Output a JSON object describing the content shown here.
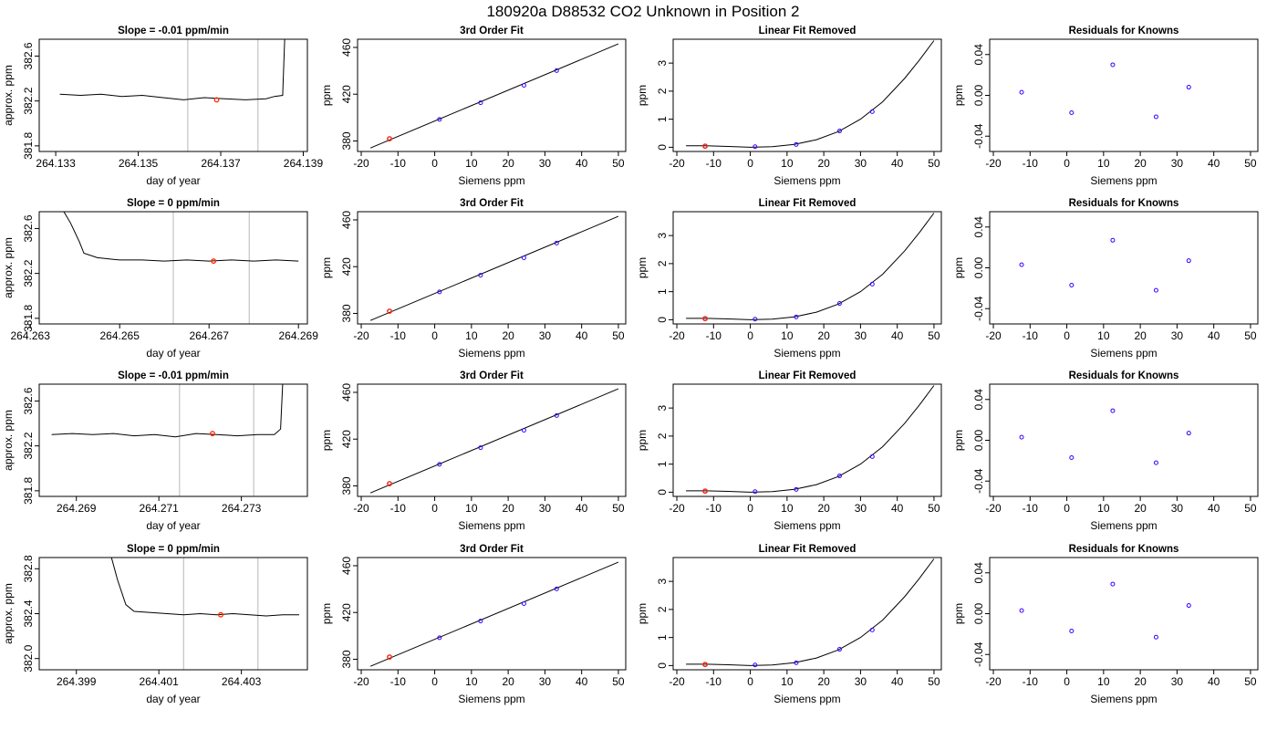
{
  "figure_title": "180920a      D88532    CO2 Unknown in Position  2",
  "chart_data": [
    {
      "type": "line",
      "title": "Slope =  -0.01  ppm/min",
      "xlabel": "day of year",
      "ylabel": "approx. ppm",
      "xlim": [
        264.1326,
        264.1391
      ],
      "ylim": [
        381.75,
        382.75
      ],
      "xticks": [
        "264.133",
        "264.135",
        "264.137",
        "264.139"
      ],
      "yticks": [
        "381.8",
        "382.2",
        "382.6"
      ],
      "vlines": [
        264.1362,
        264.1379
      ],
      "marker": {
        "x": 264.1369,
        "y": 382.21
      },
      "series": [
        {
          "x": [
            264.1331,
            264.1336,
            264.1341,
            264.1346,
            264.1351,
            264.1356,
            264.1361,
            264.1366,
            264.1371,
            264.1376,
            264.1381,
            264.1383,
            264.1385,
            264.13855
          ],
          "y": [
            382.26,
            382.25,
            382.26,
            382.24,
            382.25,
            382.23,
            382.21,
            382.23,
            382.22,
            382.21,
            382.22,
            382.24,
            382.25,
            382.75
          ]
        }
      ]
    },
    {
      "type": "scatter",
      "title": "3rd Order Fit",
      "xlabel": "Siemens ppm",
      "ylabel": "ppm",
      "xlim": [
        -21,
        52
      ],
      "ylim": [
        371,
        467
      ],
      "xticks": [
        "-20",
        "-10",
        "0",
        "10",
        "20",
        "30",
        "40",
        "50"
      ],
      "yticks": [
        "380",
        "420",
        "460"
      ],
      "points": {
        "x": [
          -12.3,
          1.3,
          12.5,
          24.3,
          33.2
        ],
        "y": [
          381.9,
          398.4,
          412.7,
          427.6,
          440.2
        ]
      },
      "fit": {
        "x": [
          -17.5,
          50
        ],
        "y": [
          374,
          463
        ]
      },
      "marker": {
        "x": -12.3,
        "y": 381.9
      }
    },
    {
      "type": "scatter",
      "title": "Linear Fit Removed",
      "xlabel": "Siemens ppm",
      "ylabel": "ppm",
      "xlim": [
        -21,
        52
      ],
      "ylim": [
        -0.15,
        3.85
      ],
      "xticks": [
        "-20",
        "-10",
        "0",
        "10",
        "20",
        "30",
        "40",
        "50"
      ],
      "yticks": [
        "0",
        "1",
        "2",
        "3"
      ],
      "points": {
        "x": [
          -12.3,
          1.3,
          12.5,
          24.3,
          33.2
        ],
        "y": [
          0.04,
          0.02,
          0.1,
          0.58,
          1.27
        ]
      },
      "fit": {
        "x": [
          -17.5,
          -12,
          -6,
          0,
          6,
          12,
          18,
          24,
          30,
          36,
          42,
          46,
          50
        ],
        "y": [
          0.05,
          0.05,
          0.03,
          0.0,
          0.02,
          0.1,
          0.27,
          0.56,
          1.0,
          1.62,
          2.45,
          3.1,
          3.8
        ]
      },
      "marker": {
        "x": -12.3,
        "y": 0.04
      }
    },
    {
      "type": "scatter",
      "title": "Residuals for Knowns",
      "xlabel": "Siemens ppm",
      "ylabel": "ppm",
      "xlim": [
        -21,
        52
      ],
      "ylim": [
        -0.055,
        0.055
      ],
      "xticks": [
        "-20",
        "-10",
        "0",
        "10",
        "20",
        "30",
        "40",
        "50"
      ],
      "yticks": [
        "-0.04",
        "0.00",
        "0.04"
      ],
      "points": {
        "x": [
          -12.3,
          1.3,
          12.5,
          24.3,
          33.2
        ],
        "y": [
          0.003,
          -0.017,
          0.03,
          -0.021,
          0.008
        ]
      }
    },
    {
      "type": "line",
      "title": "Slope =  0  ppm/min",
      "xlabel": "day of year",
      "ylabel": "approx. ppm",
      "xlim": [
        264.2632,
        264.2692
      ],
      "ylim": [
        381.75,
        382.75
      ],
      "xticks": [
        "264.263",
        "264.265",
        "264.267",
        "264.269"
      ],
      "yticks": [
        "381.8",
        "382.2",
        "382.6"
      ],
      "vlines": [
        264.2662,
        264.2679
      ],
      "marker": {
        "x": 264.2671,
        "y": 382.31
      },
      "series": [
        {
          "x": [
            264.26375,
            264.2639,
            264.2641,
            264.2642,
            264.2645,
            264.265,
            264.2655,
            264.266,
            264.2665,
            264.267,
            264.2675,
            264.268,
            264.2685,
            264.269
          ],
          "y": [
            382.75,
            382.65,
            382.48,
            382.38,
            382.34,
            382.32,
            382.32,
            382.31,
            382.32,
            382.31,
            382.32,
            382.31,
            382.32,
            382.31
          ]
        }
      ]
    },
    {
      "type": "scatter",
      "title": "3rd Order Fit",
      "xlabel": "Siemens ppm",
      "ylabel": "ppm",
      "xlim": [
        -21,
        52
      ],
      "ylim": [
        371,
        467
      ],
      "xticks": [
        "-20",
        "-10",
        "0",
        "10",
        "20",
        "30",
        "40",
        "50"
      ],
      "yticks": [
        "380",
        "420",
        "460"
      ],
      "points": {
        "x": [
          -12.3,
          1.3,
          12.5,
          24.3,
          33.2
        ],
        "y": [
          381.9,
          398.4,
          412.7,
          427.6,
          440.2
        ]
      },
      "fit": {
        "x": [
          -17.5,
          50
        ],
        "y": [
          374,
          463
        ]
      },
      "marker": {
        "x": -12.3,
        "y": 381.9
      }
    },
    {
      "type": "scatter",
      "title": "Linear Fit Removed",
      "xlabel": "Siemens ppm",
      "ylabel": "ppm",
      "xlim": [
        -21,
        52
      ],
      "ylim": [
        -0.15,
        3.85
      ],
      "xticks": [
        "-20",
        "-10",
        "0",
        "10",
        "20",
        "30",
        "40",
        "50"
      ],
      "yticks": [
        "0",
        "1",
        "2",
        "3"
      ],
      "points": {
        "x": [
          -12.3,
          1.3,
          12.5,
          24.3,
          33.2
        ],
        "y": [
          0.04,
          0.02,
          0.1,
          0.58,
          1.27
        ]
      },
      "fit": {
        "x": [
          -17.5,
          -12,
          -6,
          0,
          6,
          12,
          18,
          24,
          30,
          36,
          42,
          46,
          50
        ],
        "y": [
          0.05,
          0.05,
          0.03,
          0.0,
          0.02,
          0.1,
          0.27,
          0.56,
          1.0,
          1.62,
          2.45,
          3.1,
          3.8
        ]
      },
      "marker": {
        "x": -12.3,
        "y": 0.04
      }
    },
    {
      "type": "scatter",
      "title": "Residuals for Knowns",
      "xlabel": "Siemens ppm",
      "ylabel": "ppm",
      "xlim": [
        -21,
        52
      ],
      "ylim": [
        -0.055,
        0.055
      ],
      "xticks": [
        "-20",
        "-10",
        "0",
        "10",
        "20",
        "30",
        "40",
        "50"
      ],
      "yticks": [
        "-0.04",
        "0.00",
        "0.04"
      ],
      "points": {
        "x": [
          -12.3,
          1.3,
          12.5,
          24.3,
          33.2
        ],
        "y": [
          0.003,
          -0.017,
          0.027,
          -0.022,
          0.007
        ]
      }
    },
    {
      "type": "line",
      "title": "Slope =  -0.01  ppm/min",
      "xlabel": "day of year",
      "ylabel": "approx. ppm",
      "xlim": [
        264.2681,
        264.2746
      ],
      "ylim": [
        381.75,
        382.75
      ],
      "xticks": [
        "264.269",
        "264.271",
        "264.273"
      ],
      "yticks": [
        "381.8",
        "382.2",
        "382.6"
      ],
      "vlines": [
        264.2715,
        264.2733
      ],
      "marker": {
        "x": 264.2723,
        "y": 382.31
      },
      "series": [
        {
          "x": [
            264.2684,
            264.2689,
            264.2694,
            264.2699,
            264.2704,
            264.2709,
            264.2714,
            264.2719,
            264.2724,
            264.2729,
            264.2734,
            264.2738,
            264.27395,
            264.274
          ],
          "y": [
            382.3,
            382.31,
            382.3,
            382.31,
            382.29,
            382.3,
            382.28,
            382.31,
            382.3,
            382.29,
            382.3,
            382.3,
            382.35,
            382.75
          ]
        }
      ]
    },
    {
      "type": "scatter",
      "title": "3rd Order Fit",
      "xlabel": "Siemens ppm",
      "ylabel": "ppm",
      "xlim": [
        -21,
        52
      ],
      "ylim": [
        371,
        467
      ],
      "xticks": [
        "-20",
        "-10",
        "0",
        "10",
        "20",
        "30",
        "40",
        "50"
      ],
      "yticks": [
        "380",
        "420",
        "460"
      ],
      "points": {
        "x": [
          -12.3,
          1.3,
          12.5,
          24.3,
          33.2
        ],
        "y": [
          381.9,
          398.4,
          412.7,
          427.6,
          440.2
        ]
      },
      "fit": {
        "x": [
          -17.5,
          50
        ],
        "y": [
          374,
          463
        ]
      },
      "marker": {
        "x": -12.3,
        "y": 381.9
      }
    },
    {
      "type": "scatter",
      "title": "Linear Fit Removed",
      "xlabel": "Siemens ppm",
      "ylabel": "ppm",
      "xlim": [
        -21,
        52
      ],
      "ylim": [
        -0.15,
        3.85
      ],
      "xticks": [
        "-20",
        "-10",
        "0",
        "10",
        "20",
        "30",
        "40",
        "50"
      ],
      "yticks": [
        "0",
        "1",
        "2",
        "3"
      ],
      "points": {
        "x": [
          -12.3,
          1.3,
          12.5,
          24.3,
          33.2
        ],
        "y": [
          0.04,
          0.02,
          0.1,
          0.58,
          1.27
        ]
      },
      "fit": {
        "x": [
          -17.5,
          -12,
          -6,
          0,
          6,
          12,
          18,
          24,
          30,
          36,
          42,
          46,
          50
        ],
        "y": [
          0.05,
          0.05,
          0.03,
          0.0,
          0.02,
          0.1,
          0.27,
          0.56,
          1.0,
          1.62,
          2.45,
          3.1,
          3.8
        ]
      },
      "marker": {
        "x": -12.3,
        "y": 0.04
      }
    },
    {
      "type": "scatter",
      "title": "Residuals for Knowns",
      "xlabel": "Siemens ppm",
      "ylabel": "ppm",
      "xlim": [
        -21,
        52
      ],
      "ylim": [
        -0.055,
        0.055
      ],
      "xticks": [
        "-20",
        "-10",
        "0",
        "10",
        "20",
        "30",
        "40",
        "50"
      ],
      "yticks": [
        "-0.04",
        "0.00",
        "0.04"
      ],
      "points": {
        "x": [
          -12.3,
          1.3,
          12.5,
          24.3,
          33.2
        ],
        "y": [
          0.003,
          -0.017,
          0.029,
          -0.022,
          0.007
        ]
      }
    },
    {
      "type": "line",
      "title": "Slope =  0  ppm/min",
      "xlabel": "day of year",
      "ylabel": "approx. ppm",
      "xlim": [
        264.3981,
        264.4046
      ],
      "ylim": [
        381.9,
        382.9
      ],
      "xticks": [
        "264.399",
        "264.401",
        "264.403"
      ],
      "yticks": [
        "382.0",
        "382.4",
        "382.8"
      ],
      "vlines": [
        264.4016,
        264.4034
      ],
      "marker": {
        "x": 264.4025,
        "y": 382.39
      },
      "series": [
        {
          "x": [
            264.39985,
            264.4,
            264.4002,
            264.4004,
            264.4008,
            264.4012,
            264.4016,
            264.402,
            264.4024,
            264.4028,
            264.4032,
            264.4036,
            264.404,
            264.4044
          ],
          "y": [
            382.9,
            382.7,
            382.48,
            382.42,
            382.41,
            382.4,
            382.39,
            382.4,
            382.39,
            382.4,
            382.39,
            382.38,
            382.39,
            382.39
          ]
        }
      ]
    },
    {
      "type": "scatter",
      "title": "3rd Order Fit",
      "xlabel": "Siemens ppm",
      "ylabel": "ppm",
      "xlim": [
        -21,
        52
      ],
      "ylim": [
        371,
        467
      ],
      "xticks": [
        "-20",
        "-10",
        "0",
        "10",
        "20",
        "30",
        "40",
        "50"
      ],
      "yticks": [
        "380",
        "420",
        "460"
      ],
      "points": {
        "x": [
          -12.3,
          1.3,
          12.5,
          24.3,
          33.2
        ],
        "y": [
          381.9,
          398.4,
          412.7,
          427.6,
          440.2
        ]
      },
      "fit": {
        "x": [
          -17.5,
          50
        ],
        "y": [
          374,
          463
        ]
      },
      "marker": {
        "x": -12.3,
        "y": 381.9
      }
    },
    {
      "type": "scatter",
      "title": "Linear Fit Removed",
      "xlabel": "Siemens ppm",
      "ylabel": "ppm",
      "xlim": [
        -21,
        52
      ],
      "ylim": [
        -0.15,
        3.85
      ],
      "xticks": [
        "-20",
        "-10",
        "0",
        "10",
        "20",
        "30",
        "40",
        "50"
      ],
      "yticks": [
        "0",
        "1",
        "2",
        "3"
      ],
      "points": {
        "x": [
          -12.3,
          1.3,
          12.5,
          24.3,
          33.2
        ],
        "y": [
          0.04,
          0.02,
          0.1,
          0.58,
          1.27
        ]
      },
      "fit": {
        "x": [
          -17.5,
          -12,
          -6,
          0,
          6,
          12,
          18,
          24,
          30,
          36,
          42,
          46,
          50
        ],
        "y": [
          0.05,
          0.05,
          0.03,
          0.0,
          0.02,
          0.1,
          0.27,
          0.56,
          1.0,
          1.62,
          2.45,
          3.1,
          3.8
        ]
      },
      "marker": {
        "x": -12.3,
        "y": 0.04
      }
    },
    {
      "type": "scatter",
      "title": "Residuals for Knowns",
      "xlabel": "Siemens ppm",
      "ylabel": "ppm",
      "xlim": [
        -21,
        52
      ],
      "ylim": [
        -0.055,
        0.055
      ],
      "xticks": [
        "-20",
        "-10",
        "0",
        "10",
        "20",
        "30",
        "40",
        "50"
      ],
      "yticks": [
        "-0.04",
        "0.00",
        "0.04"
      ],
      "points": {
        "x": [
          -12.3,
          1.3,
          12.5,
          24.3,
          33.2
        ],
        "y": [
          0.003,
          -0.017,
          0.029,
          -0.023,
          0.008
        ]
      }
    }
  ],
  "colors": {
    "axis": "#000000",
    "line": "#000000",
    "point": "#3a00ff",
    "marker": "#ff2a00",
    "vline": "#c8c8c8"
  }
}
